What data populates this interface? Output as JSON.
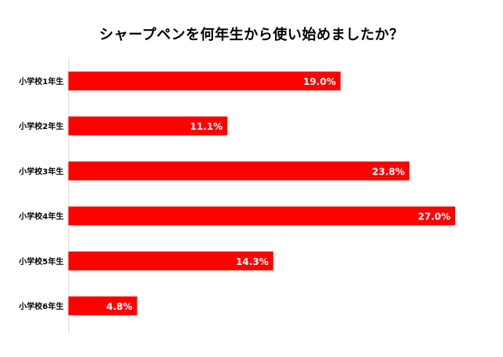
{
  "chart_data": {
    "type": "bar",
    "orientation": "horizontal",
    "title": "シャープペンを何年生から使い始めましたか？",
    "categories": [
      "小学校1年生",
      "小学校2年生",
      "小学校3年生",
      "小学校4年生",
      "小学校5年生",
      "小学校6年生"
    ],
    "values": [
      19.0,
      11.1,
      23.8,
      27.0,
      14.3,
      4.8
    ],
    "value_labels": [
      "19.0%",
      "11.1%",
      "23.8%",
      "27.0%",
      "14.3%",
      "4.8%"
    ],
    "xlabel": "",
    "ylabel": "",
    "xlim": [
      0,
      27.7
    ],
    "grid": false,
    "legend": "none",
    "bar_color": "#ff0000"
  }
}
